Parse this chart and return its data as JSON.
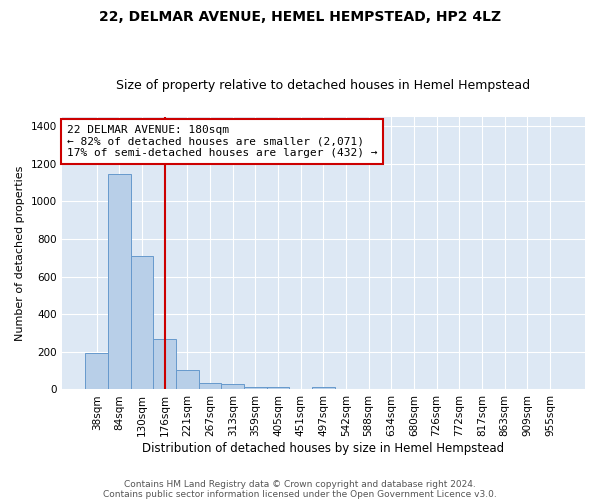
{
  "title": "22, DELMAR AVENUE, HEMEL HEMPSTEAD, HP2 4LZ",
  "subtitle": "Size of property relative to detached houses in Hemel Hempstead",
  "xlabel": "Distribution of detached houses by size in Hemel Hempstead",
  "ylabel": "Number of detached properties",
  "categories": [
    "38sqm",
    "84sqm",
    "130sqm",
    "176sqm",
    "221sqm",
    "267sqm",
    "313sqm",
    "359sqm",
    "405sqm",
    "451sqm",
    "497sqm",
    "542sqm",
    "588sqm",
    "634sqm",
    "680sqm",
    "726sqm",
    "772sqm",
    "817sqm",
    "863sqm",
    "909sqm",
    "955sqm"
  ],
  "values": [
    195,
    1145,
    710,
    270,
    105,
    35,
    28,
    14,
    14,
    0,
    14,
    0,
    0,
    0,
    0,
    0,
    0,
    0,
    0,
    0,
    0
  ],
  "bar_color": "#b8cfe8",
  "bar_edge_color": "#6699cc",
  "background_color": "#dde8f4",
  "grid_color": "#ffffff",
  "annotation_text_line1": "22 DELMAR AVENUE: 180sqm",
  "annotation_text_line2": "← 82% of detached houses are smaller (2,071)",
  "annotation_text_line3": "17% of semi-detached houses are larger (432) →",
  "annotation_box_color": "#ffffff",
  "annotation_box_edge_color": "#cc0000",
  "vline_color": "#cc0000",
  "vline_x": 3.0,
  "ylim": [
    0,
    1450
  ],
  "yticks": [
    0,
    200,
    400,
    600,
    800,
    1000,
    1200,
    1400
  ],
  "footer_line1": "Contains HM Land Registry data © Crown copyright and database right 2024.",
  "footer_line2": "Contains public sector information licensed under the Open Government Licence v3.0.",
  "title_fontsize": 10,
  "subtitle_fontsize": 9,
  "xlabel_fontsize": 8.5,
  "ylabel_fontsize": 8,
  "tick_fontsize": 7.5,
  "annotation_fontsize": 8,
  "footer_fontsize": 6.5
}
